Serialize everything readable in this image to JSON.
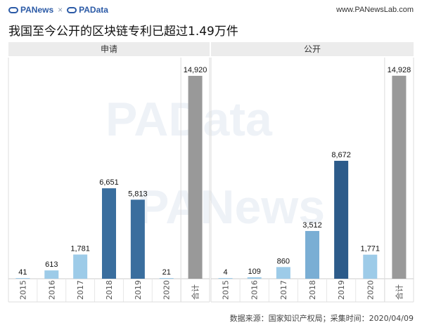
{
  "header": {
    "brand_1": "PANews",
    "brand_sep": "×",
    "brand_2": "PAData",
    "site": "www.PANewsLab.com",
    "title": "我国至今公开的区块链专利已超过1.49万件"
  },
  "watermarks": [
    "PAData",
    "PANews"
  ],
  "colors": {
    "light": "#9dcbe8",
    "mid": "#7aaed4",
    "dark": "#3a6e9e",
    "darkest": "#2c5b8a",
    "total": "#999999",
    "panel_header": "#ececec"
  },
  "chart_data": [
    {
      "type": "bar",
      "title": "申请",
      "categories": [
        "2015",
        "2016",
        "2017",
        "2018",
        "2019",
        "2020",
        "合计"
      ],
      "values": [
        41,
        613,
        1781,
        6651,
        5813,
        21,
        14920
      ],
      "labels": [
        "41",
        "613",
        "1,781",
        "6,651",
        "5,813",
        "21",
        "14,920"
      ],
      "ylim": [
        0,
        16000
      ]
    },
    {
      "type": "bar",
      "title": "公开",
      "categories": [
        "2015",
        "2016",
        "2017",
        "2018",
        "2019",
        "2020",
        "合计"
      ],
      "values": [
        4,
        109,
        860,
        3512,
        8672,
        1771,
        14928
      ],
      "labels": [
        "4",
        "109",
        "860",
        "3,512",
        "8,672",
        "1,771",
        "14,928"
      ],
      "ylim": [
        0,
        16000
      ]
    }
  ],
  "footer": {
    "source": "数据来源：国家知识产权局；采集时间：2020/04/09"
  }
}
